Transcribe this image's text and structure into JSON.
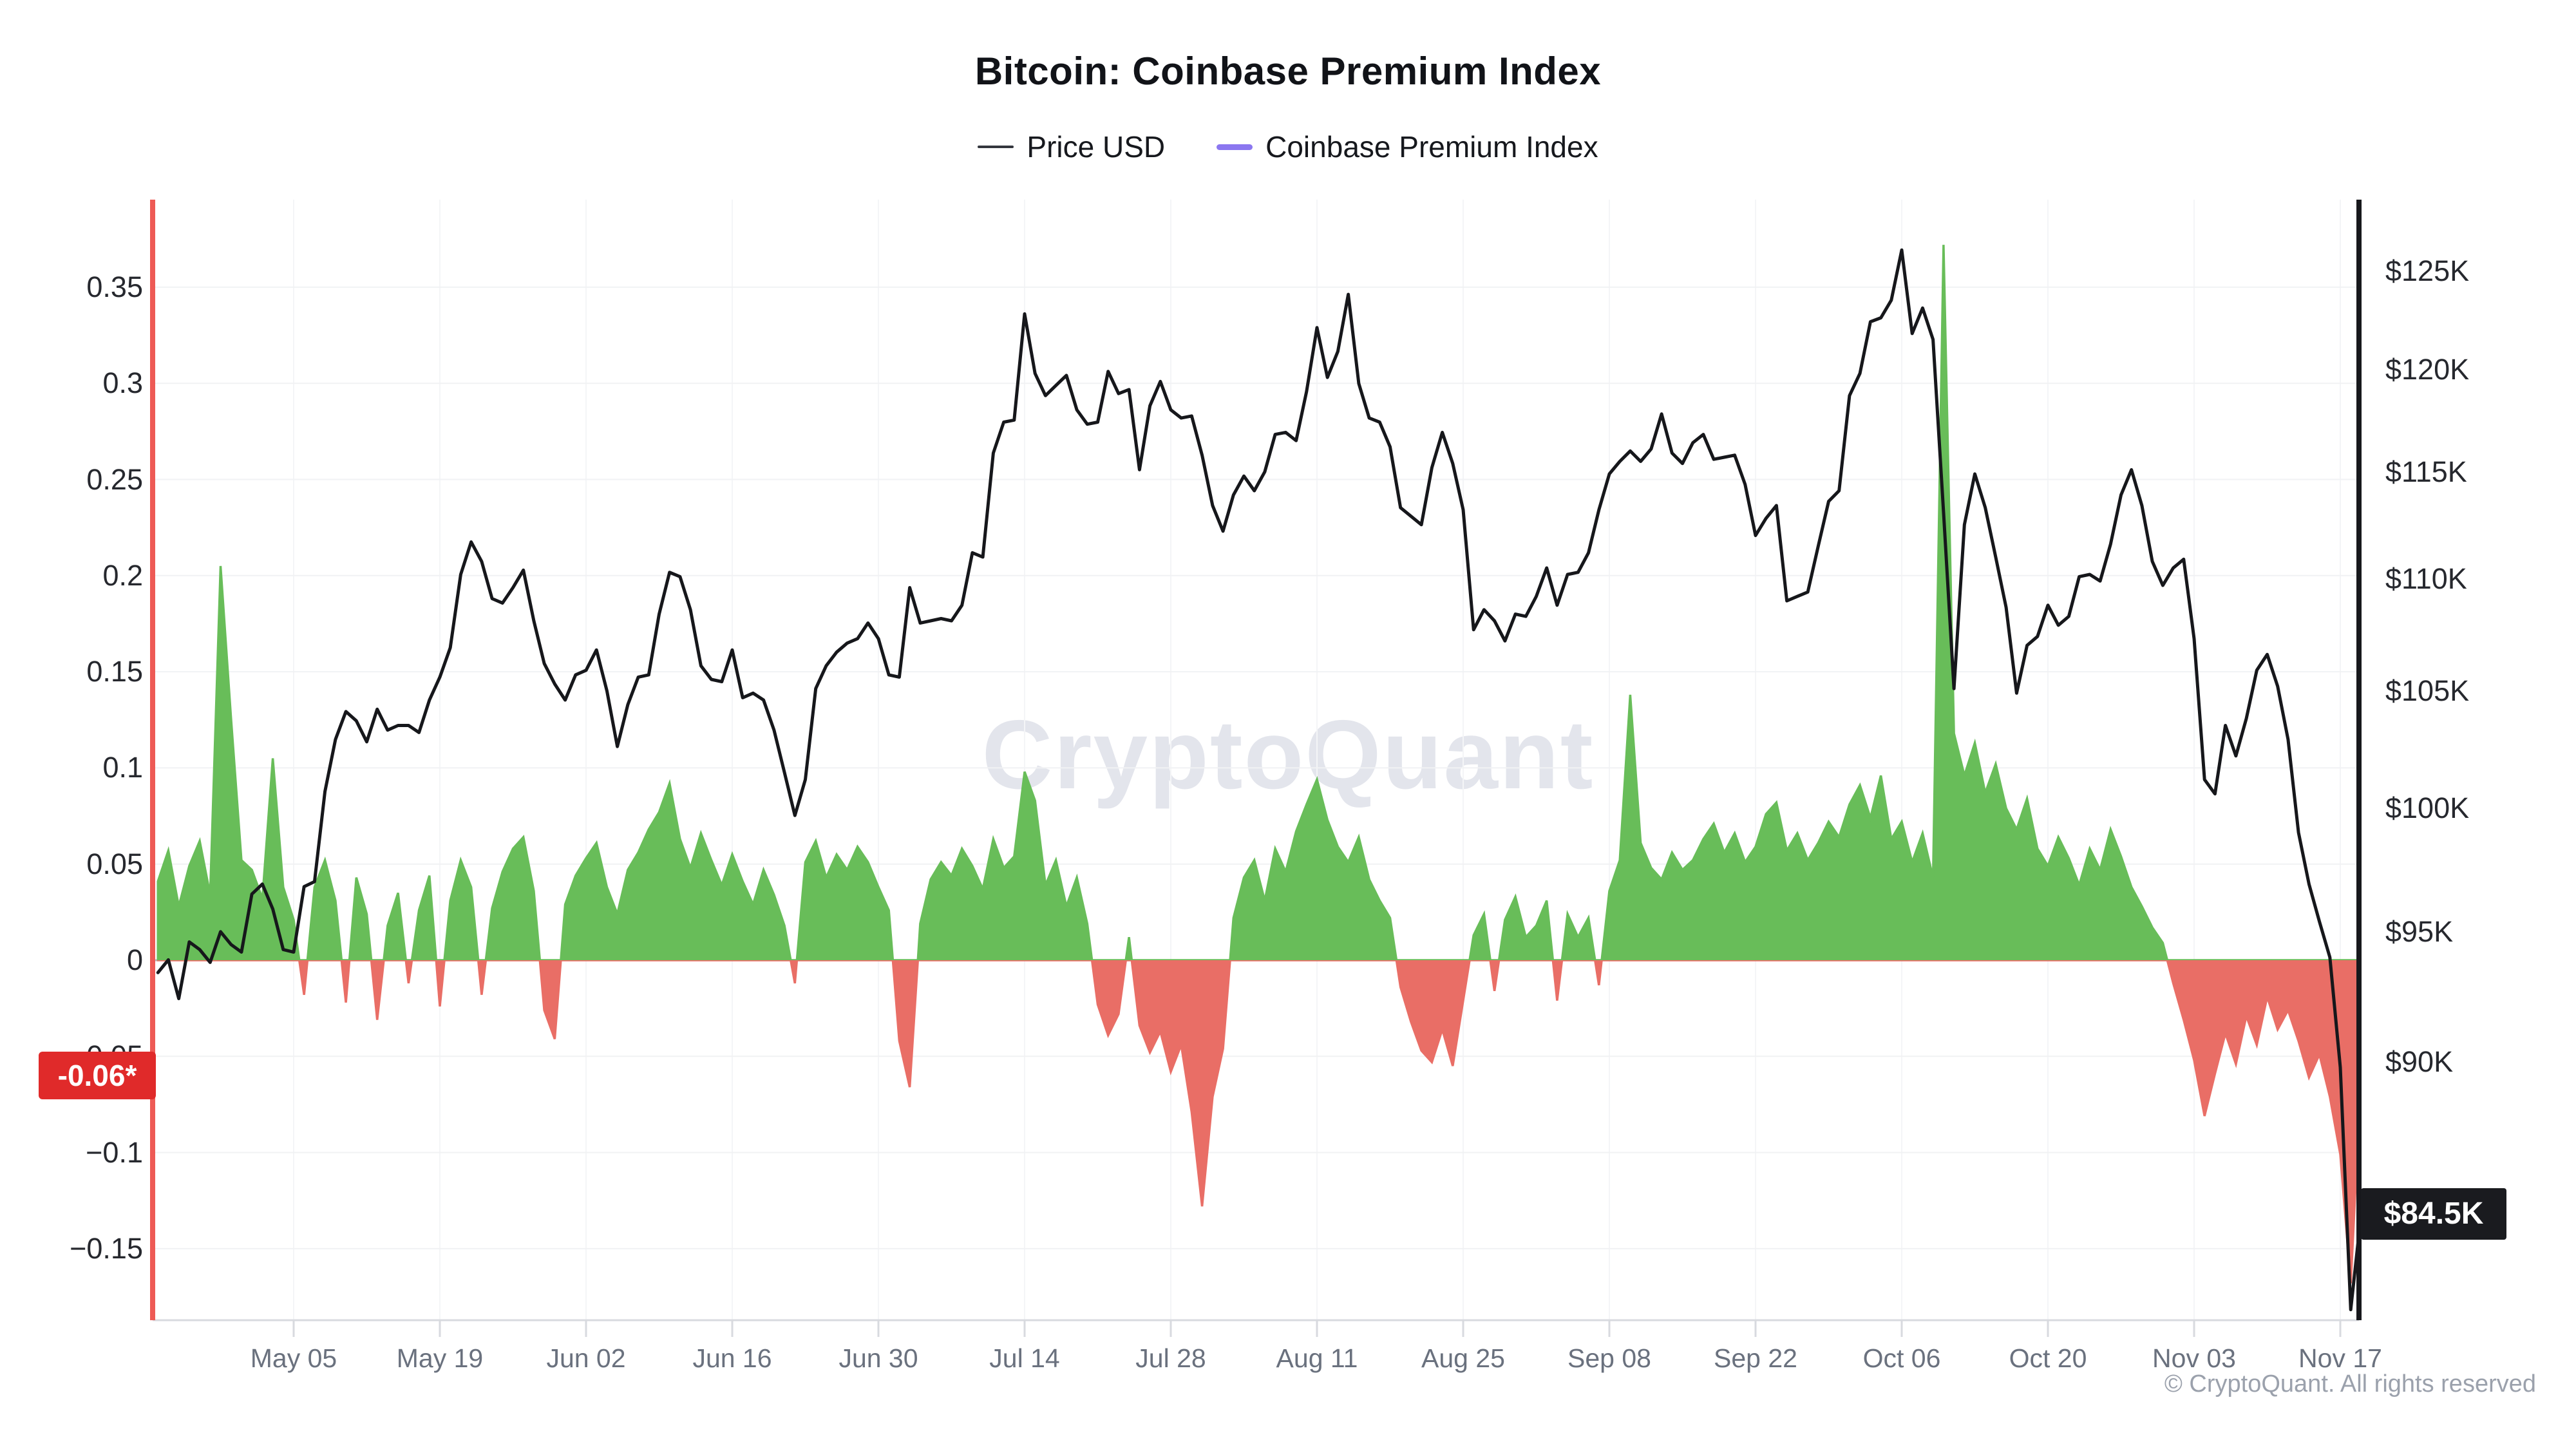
{
  "header": {
    "title": "Bitcoin: Coinbase Premium Index",
    "legend": [
      {
        "label": "Price USD",
        "color": "#33363d",
        "dash_thickness": 4
      },
      {
        "label": "Coinbase Premium Index",
        "color": "#8b77f0",
        "dash_thickness": 9
      }
    ]
  },
  "watermark": "CryptoQuant",
  "footer": "© CryptoQuant. All rights reserved",
  "badges": {
    "premium_current": {
      "label": "-0.06*",
      "value": -0.06,
      "bg": "#e02a2a"
    },
    "price_current": {
      "label": "$84.5K",
      "value": 84.5,
      "bg": "#1a1b1f"
    }
  },
  "colors": {
    "price_line": "#16171b",
    "premium_positive": "#68bd59",
    "premium_negative": "#e96e66",
    "left_axis_line": "#ee5a55",
    "right_axis_line": "#17181c",
    "grid_h": "#f1f2f4",
    "grid_v": "#f4f5f7",
    "zero_line": "#b4bac2",
    "bottom_border": "#d8dadf",
    "tick_mark": "#d8dadf"
  },
  "chart_data": {
    "type": "line",
    "title": "Bitcoin: Coinbase Premium Index",
    "legend_position": "top-center",
    "grid": "on",
    "x_start_date": "Apr 22",
    "x_end_date": "Nov 19",
    "x_interval": "daily",
    "x_tick_labels": [
      "May 05",
      "May 19",
      "Jun 02",
      "Jun 16",
      "Jun 30",
      "Jul 14",
      "Jul 28",
      "Aug 11",
      "Aug 25",
      "Sep 08",
      "Sep 22",
      "Oct 06",
      "Oct 20",
      "Nov 03",
      "Nov 17"
    ],
    "left_axis": {
      "name": "Coinbase Premium Index",
      "scale": "linear",
      "ticks": [
        0.35,
        0.3,
        0.25,
        0.2,
        0.15,
        0.1,
        0.05,
        0,
        -0.05,
        -0.1,
        -0.15
      ],
      "tick_labels": [
        "0.35",
        "0.3",
        "0.25",
        "0.2",
        "0.15",
        "0.1",
        "0.05",
        "0",
        "−0.05",
        "−0.1",
        "−0.15"
      ],
      "current_value": -0.06
    },
    "right_axis": {
      "name": "Price USD",
      "scale": "log",
      "unit": "USD thousands",
      "ticks": [
        125,
        120,
        115,
        110,
        105,
        100,
        95,
        90
      ],
      "tick_labels": [
        "$125K",
        "$120K",
        "$115K",
        "$110K",
        "$105K",
        "$100K",
        "$95K",
        "$90K"
      ],
      "current_value": 84.5
    },
    "series": [
      {
        "name": "Price USD",
        "axis": "right",
        "unit": "USD thousands",
        "values": [
          93.4,
          93.9,
          92.4,
          94.6,
          94.3,
          93.8,
          95.0,
          94.5,
          94.2,
          96.5,
          96.9,
          95.9,
          94.3,
          94.2,
          96.8,
          97.0,
          100.7,
          102.9,
          104.1,
          103.7,
          102.8,
          104.2,
          103.3,
          103.5,
          103.5,
          103.2,
          104.6,
          105.6,
          106.9,
          110.2,
          111.7,
          110.8,
          109.1,
          108.9,
          109.6,
          110.4,
          108.1,
          106.2,
          105.3,
          104.6,
          105.7,
          105.9,
          106.8,
          105.0,
          102.6,
          104.4,
          105.6,
          105.7,
          108.4,
          110.3,
          110.1,
          108.6,
          106.1,
          105.5,
          105.4,
          106.8,
          104.7,
          104.9,
          104.6,
          103.3,
          101.5,
          99.7,
          101.2,
          105.1,
          106.1,
          106.7,
          107.1,
          107.3,
          108.0,
          107.3,
          105.7,
          105.6,
          109.6,
          108.0,
          108.1,
          108.2,
          108.1,
          108.8,
          111.2,
          111.0,
          115.9,
          117.4,
          117.5,
          122.8,
          119.8,
          118.7,
          119.2,
          119.7,
          118.0,
          117.3,
          117.4,
          119.9,
          118.8,
          119.0,
          115.1,
          118.2,
          119.4,
          118.0,
          117.6,
          117.7,
          115.8,
          113.4,
          112.2,
          113.9,
          114.8,
          114.1,
          115.0,
          116.8,
          116.9,
          116.5,
          118.9,
          122.1,
          119.6,
          120.9,
          123.8,
          119.3,
          117.6,
          117.4,
          116.2,
          113.3,
          112.9,
          112.5,
          115.2,
          116.9,
          115.4,
          113.2,
          107.7,
          108.6,
          108.1,
          107.2,
          108.4,
          108.3,
          109.2,
          110.5,
          108.8,
          110.2,
          110.3,
          111.2,
          113.2,
          114.9,
          115.5,
          116.0,
          115.5,
          116.1,
          117.8,
          115.9,
          115.4,
          116.4,
          116.8,
          115.6,
          115.7,
          115.8,
          114.4,
          112.0,
          112.8,
          113.4,
          109.0,
          109.2,
          109.4,
          111.5,
          113.6,
          114.1,
          118.7,
          119.8,
          122.4,
          122.6,
          123.5,
          126.1,
          121.8,
          123.1,
          121.5,
          113.1,
          105.1,
          112.5,
          114.9,
          113.3,
          111.0,
          108.7,
          104.9,
          107.0,
          107.4,
          108.8,
          107.9,
          108.3,
          110.1,
          110.2,
          109.9,
          111.6,
          113.9,
          115.1,
          113.4,
          110.8,
          109.7,
          110.5,
          110.9,
          107.3,
          101.2,
          100.6,
          103.5,
          102.2,
          103.8,
          105.9,
          106.6,
          105.2,
          102.9,
          99.0,
          96.9,
          95.4,
          94.0,
          89.8,
          81.2,
          84.5
        ]
      },
      {
        "name": "Coinbase Premium Index",
        "axis": "left",
        "values": [
          0.041,
          0.057,
          0.028,
          0.049,
          0.062,
          0.034,
          0.205,
          0.126,
          0.052,
          0.047,
          0.032,
          0.105,
          0.038,
          0.021,
          -0.018,
          0.038,
          0.052,
          0.031,
          -0.022,
          0.043,
          0.024,
          -0.031,
          0.018,
          0.035,
          -0.012,
          0.026,
          0.044,
          -0.024,
          0.031,
          0.052,
          0.038,
          -0.018,
          0.027,
          0.046,
          0.058,
          0.064,
          0.036,
          -0.026,
          -0.041,
          0.029,
          0.044,
          0.053,
          0.061,
          0.038,
          0.024,
          0.047,
          0.056,
          0.068,
          0.077,
          0.092,
          0.063,
          0.048,
          0.066,
          0.052,
          0.039,
          0.055,
          0.041,
          0.029,
          0.047,
          0.034,
          0.018,
          -0.012,
          0.051,
          0.062,
          0.043,
          0.055,
          0.047,
          0.059,
          0.051,
          0.038,
          0.026,
          -0.042,
          -0.066,
          0.019,
          0.042,
          0.051,
          0.044,
          0.058,
          0.049,
          0.037,
          0.063,
          0.048,
          0.054,
          0.098,
          0.083,
          0.039,
          0.052,
          0.028,
          0.043,
          0.019,
          -0.023,
          -0.039,
          -0.028,
          0.012,
          -0.034,
          -0.048,
          -0.037,
          -0.058,
          -0.044,
          -0.079,
          -0.128,
          -0.071,
          -0.046,
          0.022,
          0.043,
          0.052,
          0.031,
          0.058,
          0.046,
          0.067,
          0.081,
          0.094,
          0.073,
          0.059,
          0.051,
          0.064,
          0.042,
          0.031,
          0.022,
          -0.014,
          -0.032,
          -0.047,
          -0.053,
          -0.036,
          -0.055,
          -0.021,
          0.013,
          0.024,
          -0.016,
          0.021,
          0.033,
          0.012,
          0.018,
          0.031,
          -0.021,
          0.024,
          0.012,
          0.022,
          -0.013,
          0.036,
          0.052,
          0.138,
          0.061,
          0.048,
          0.042,
          0.056,
          0.047,
          0.052,
          0.063,
          0.071,
          0.056,
          0.066,
          0.051,
          0.059,
          0.076,
          0.082,
          0.057,
          0.066,
          0.052,
          0.061,
          0.072,
          0.064,
          0.081,
          0.091,
          0.074,
          0.096,
          0.063,
          0.072,
          0.051,
          0.066,
          0.043,
          0.372,
          0.118,
          0.096,
          0.113,
          0.087,
          0.102,
          0.079,
          0.068,
          0.084,
          0.058,
          0.049,
          0.064,
          0.053,
          0.039,
          0.058,
          0.047,
          0.068,
          0.054,
          0.038,
          0.028,
          0.017,
          0.009,
          -0.012,
          -0.031,
          -0.052,
          -0.081,
          -0.059,
          -0.038,
          -0.054,
          -0.029,
          -0.044,
          -0.019,
          -0.036,
          -0.026,
          -0.042,
          -0.061,
          -0.049,
          -0.071,
          -0.101,
          -0.168,
          -0.06
        ]
      }
    ]
  }
}
